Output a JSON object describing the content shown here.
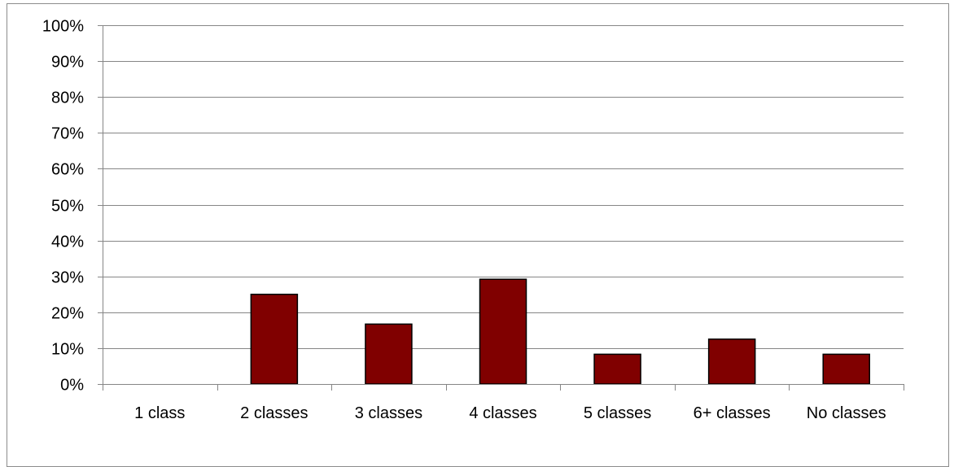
{
  "chart_data": {
    "type": "bar",
    "categories": [
      "1 class",
      "2 classes",
      "3 classes",
      "4 classes",
      "5 classes",
      "6+ classes",
      "No classes"
    ],
    "values": [
      0,
      25.0,
      16.7,
      29.2,
      8.3,
      12.5,
      8.3
    ],
    "ylim": [
      0,
      100
    ],
    "y_ticks": [
      "0%",
      "10%",
      "20%",
      "30%",
      "40%",
      "50%",
      "60%",
      "70%",
      "80%",
      "90%",
      "100%"
    ],
    "grid": true,
    "legend": "none",
    "bar_color": "#800000",
    "bar_stroke": "#000000",
    "grid_color": "#868686"
  }
}
